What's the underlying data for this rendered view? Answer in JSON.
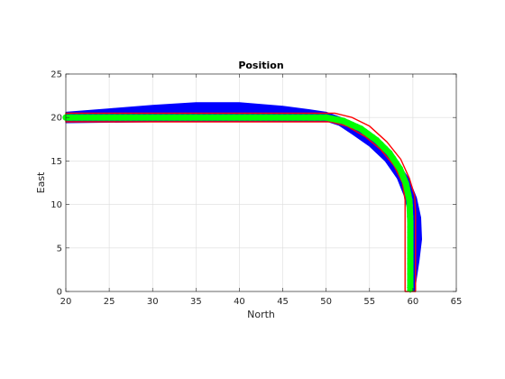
{
  "chart_data": {
    "type": "line",
    "title": "Position",
    "xlabel": "North",
    "ylabel": "East",
    "xlim": [
      20,
      65
    ],
    "ylim": [
      0,
      25
    ],
    "xticks": [
      20,
      25,
      30,
      35,
      40,
      45,
      50,
      55,
      60,
      65
    ],
    "yticks": [
      0,
      5,
      10,
      15,
      20,
      25
    ],
    "grid": true,
    "series": [
      {
        "color": "#0000ff",
        "style": "band",
        "upper": [
          [
            20,
            20.6
          ],
          [
            25,
            21.0
          ],
          [
            30,
            21.4
          ],
          [
            35,
            21.7
          ],
          [
            40,
            21.7
          ],
          [
            45,
            21.3
          ],
          [
            48,
            20.9
          ],
          [
            50,
            20.6
          ],
          [
            52,
            19.9
          ],
          [
            54,
            18.8
          ],
          [
            56,
            17.2
          ],
          [
            58,
            15.2
          ],
          [
            59.5,
            13.0
          ],
          [
            60.4,
            10.8
          ],
          [
            60.9,
            8.5
          ],
          [
            61.0,
            6.0
          ],
          [
            60.7,
            3.5
          ],
          [
            60.4,
            1.5
          ],
          [
            60.2,
            0
          ]
        ],
        "lower": [
          [
            20,
            19.4
          ],
          [
            30,
            19.5
          ],
          [
            40,
            19.5
          ],
          [
            48,
            19.6
          ],
          [
            50,
            19.6
          ],
          [
            51.5,
            19.1
          ],
          [
            53,
            18.1
          ],
          [
            55,
            16.7
          ],
          [
            56.8,
            15.0
          ],
          [
            58.2,
            13.0
          ],
          [
            59.0,
            11.0
          ],
          [
            59.5,
            9.0
          ],
          [
            59.6,
            6.0
          ],
          [
            59.5,
            3.0
          ],
          [
            59.4,
            0
          ]
        ]
      },
      {
        "color": "#ff0000",
        "style": "outline",
        "points": [
          [
            20,
            20.5
          ],
          [
            49,
            20.5
          ],
          [
            51,
            20.5
          ],
          [
            53,
            20.0
          ],
          [
            55,
            19.0
          ],
          [
            57,
            17.2
          ],
          [
            58.6,
            15.2
          ],
          [
            59.6,
            13.0
          ],
          [
            60.2,
            11.0
          ],
          [
            60.3,
            9.0
          ],
          [
            60.3,
            0
          ],
          [
            59.1,
            0
          ],
          [
            59.1,
            10.5
          ],
          [
            58.8,
            12.5
          ],
          [
            57.8,
            14.5
          ],
          [
            56.3,
            16.3
          ],
          [
            54.5,
            17.8
          ],
          [
            52.4,
            19.0
          ],
          [
            50.5,
            19.5
          ],
          [
            49,
            19.5
          ],
          [
            20,
            19.5
          ]
        ]
      },
      {
        "color": "#00ff00",
        "style": "thick",
        "points": [
          [
            20,
            20.0
          ],
          [
            30,
            20.0
          ],
          [
            40,
            20.0
          ],
          [
            48,
            20.0
          ],
          [
            50,
            20.0
          ],
          [
            52,
            19.6
          ],
          [
            54,
            18.7
          ],
          [
            55.8,
            17.4
          ],
          [
            57.3,
            15.9
          ],
          [
            58.5,
            14.1
          ],
          [
            59.2,
            12.4
          ],
          [
            59.6,
            10.5
          ],
          [
            59.7,
            8.0
          ],
          [
            59.7,
            5.0
          ],
          [
            59.7,
            2.0
          ],
          [
            59.7,
            0
          ]
        ]
      }
    ]
  }
}
